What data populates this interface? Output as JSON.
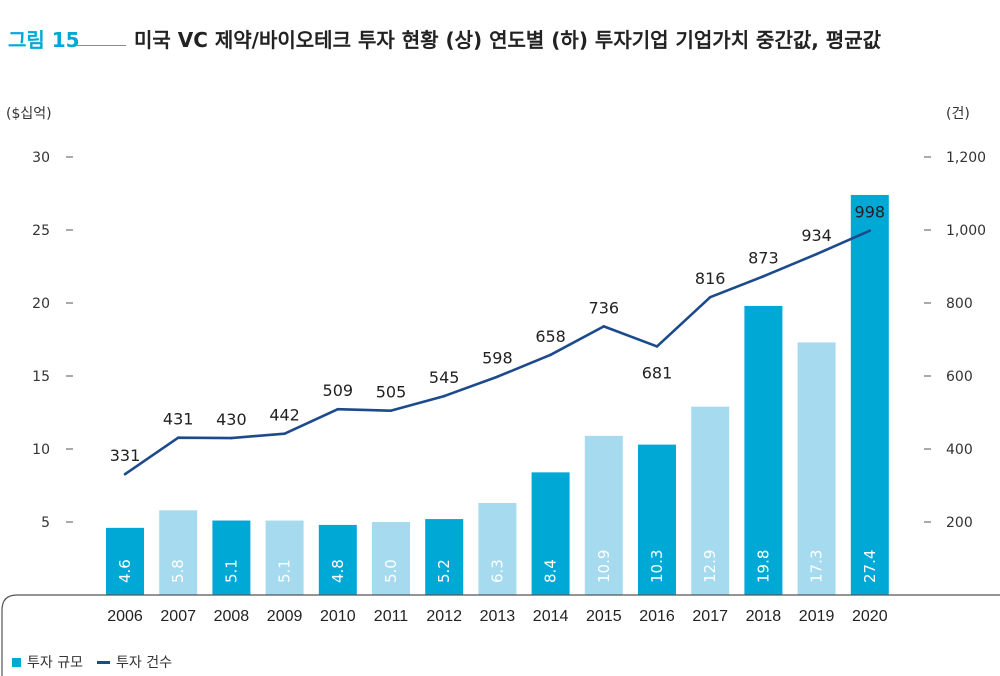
{
  "figure": {
    "label": "그림 15",
    "title": "미국 VC 제약/바이오테크 투자 현황 (상) 연도별 (하) 투자기업 기업가치 중간값, 평균값"
  },
  "colors": {
    "bar_dark": "#00a8d6",
    "bar_light": "#a6daef",
    "line": "#1d4a8c",
    "accent": "#00a8d6"
  },
  "legend": {
    "investment_size": "투자 규모",
    "investment_count": "투자 건수"
  },
  "chart_data": {
    "type": "bar",
    "title": "",
    "categories": [
      "2006",
      "2007",
      "2008",
      "2009",
      "2010",
      "2011",
      "2012",
      "2013",
      "2014",
      "2015",
      "2016",
      "2017",
      "2018",
      "2019",
      "2020"
    ],
    "series": [
      {
        "name": "투자 규모",
        "type": "bar",
        "axis": "left",
        "values": [
          4.6,
          5.8,
          5.1,
          5.1,
          4.8,
          5.0,
          5.2,
          6.3,
          8.4,
          10.9,
          10.3,
          12.9,
          19.8,
          17.3,
          27.4
        ],
        "value_labels": [
          "4.6",
          "5.8",
          "5.1",
          "5.1",
          "4.8",
          "5.0",
          "5.2",
          "6.3",
          "8.4",
          "10.9",
          "10.3",
          "12.9",
          "19.8",
          "17.3",
          "27.4"
        ],
        "shade": [
          "dark",
          "light",
          "dark",
          "light",
          "dark",
          "light",
          "dark",
          "light",
          "dark",
          "light",
          "dark",
          "light",
          "dark",
          "light",
          "dark"
        ]
      },
      {
        "name": "투자 건수",
        "type": "line",
        "axis": "right",
        "values": [
          331,
          431,
          430,
          442,
          509,
          505,
          545,
          598,
          658,
          736,
          681,
          816,
          873,
          934,
          998
        ],
        "value_labels": [
          "331",
          "431",
          "430",
          "442",
          "509",
          "505",
          "545",
          "598",
          "658",
          "736",
          "681",
          "816",
          "873",
          "934",
          "998"
        ]
      }
    ],
    "y_left": {
      "unit": "($십억)",
      "ticks": [
        5,
        10,
        15,
        20,
        25,
        30
      ],
      "tick_labels": [
        "5",
        "10",
        "15",
        "20",
        "25",
        "30"
      ],
      "ylim": [
        0,
        30
      ]
    },
    "y_right": {
      "unit": "(건)",
      "ticks": [
        200,
        400,
        600,
        800,
        1000,
        1200
      ],
      "tick_labels": [
        "200",
        "400",
        "600",
        "800",
        "1,000",
        "1,200"
      ],
      "ylim": [
        0,
        1200
      ]
    },
    "grid": false,
    "legend_position": "bottom-left"
  }
}
